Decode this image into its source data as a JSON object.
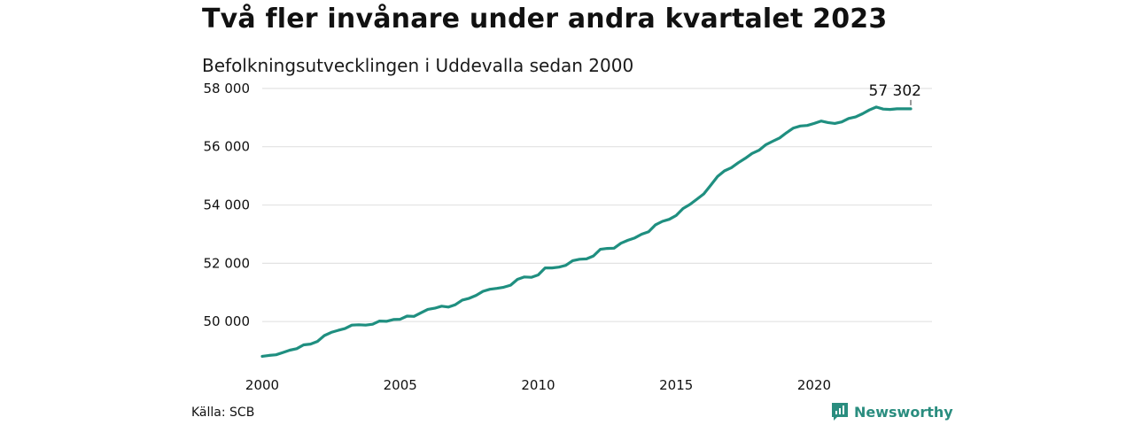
{
  "header": {
    "title": "Två fler invånare under andra kvartalet 2023",
    "subtitle": "Befolkningsutvecklingen i Uddevalla sedan 2000"
  },
  "footer": {
    "source": "Källa: SCB",
    "brand": "Newsworthy"
  },
  "colors": {
    "line": "#1f8f80",
    "brand": "#2a8d7f",
    "grid": "#e3e3e3"
  },
  "chart_data": {
    "type": "line",
    "title": "Två fler invånare under andra kvartalet 2023",
    "subtitle": "Befolkningsutvecklingen i Uddevalla sedan 2000",
    "xlim": [
      2000,
      2023.5
    ],
    "ylim": [
      48700,
      58300
    ],
    "x_ticks": [
      2000,
      2005,
      2010,
      2015,
      2020
    ],
    "x_tick_labels": [
      "2000",
      "2005",
      "2010",
      "2015",
      "2020"
    ],
    "y_ticks": [
      50000,
      52000,
      54000,
      56000,
      58000
    ],
    "y_tick_labels": [
      "50 000",
      "52 000",
      "54 000",
      "56 000",
      "58 000"
    ],
    "grid": "horizontal",
    "end_label": "57 302",
    "series": [
      {
        "points": [
          [
            2000.0,
            48810
          ],
          [
            2000.25,
            48840
          ],
          [
            2000.5,
            48860
          ],
          [
            2000.75,
            48940
          ],
          [
            2001.0,
            49020
          ],
          [
            2001.25,
            49070
          ],
          [
            2001.5,
            49200
          ],
          [
            2001.75,
            49230
          ],
          [
            2002.0,
            49320
          ],
          [
            2002.25,
            49520
          ],
          [
            2002.5,
            49630
          ],
          [
            2002.75,
            49700
          ],
          [
            2003.0,
            49760
          ],
          [
            2003.25,
            49880
          ],
          [
            2003.5,
            49890
          ],
          [
            2003.75,
            49880
          ],
          [
            2004.0,
            49910
          ],
          [
            2004.25,
            50020
          ],
          [
            2004.5,
            50010
          ],
          [
            2004.75,
            50070
          ],
          [
            2005.0,
            50080
          ],
          [
            2005.25,
            50190
          ],
          [
            2005.5,
            50180
          ],
          [
            2005.75,
            50300
          ],
          [
            2006.0,
            50420
          ],
          [
            2006.25,
            50460
          ],
          [
            2006.5,
            50530
          ],
          [
            2006.75,
            50500
          ],
          [
            2007.0,
            50580
          ],
          [
            2007.25,
            50740
          ],
          [
            2007.5,
            50800
          ],
          [
            2007.75,
            50900
          ],
          [
            2008.0,
            51040
          ],
          [
            2008.25,
            51110
          ],
          [
            2008.5,
            51140
          ],
          [
            2008.75,
            51180
          ],
          [
            2009.0,
            51250
          ],
          [
            2009.25,
            51450
          ],
          [
            2009.5,
            51530
          ],
          [
            2009.75,
            51520
          ],
          [
            2010.0,
            51600
          ],
          [
            2010.25,
            51840
          ],
          [
            2010.5,
            51840
          ],
          [
            2010.75,
            51870
          ],
          [
            2011.0,
            51930
          ],
          [
            2011.25,
            52090
          ],
          [
            2011.5,
            52140
          ],
          [
            2011.75,
            52150
          ],
          [
            2012.0,
            52250
          ],
          [
            2012.25,
            52480
          ],
          [
            2012.5,
            52510
          ],
          [
            2012.75,
            52520
          ],
          [
            2013.0,
            52690
          ],
          [
            2013.25,
            52790
          ],
          [
            2013.5,
            52870
          ],
          [
            2013.75,
            53000
          ],
          [
            2014.0,
            53080
          ],
          [
            2014.25,
            53320
          ],
          [
            2014.5,
            53440
          ],
          [
            2014.75,
            53510
          ],
          [
            2015.0,
            53640
          ],
          [
            2015.25,
            53880
          ],
          [
            2015.5,
            54020
          ],
          [
            2015.75,
            54200
          ],
          [
            2016.0,
            54380
          ],
          [
            2016.25,
            54680
          ],
          [
            2016.5,
            54980
          ],
          [
            2016.75,
            55170
          ],
          [
            2017.0,
            55280
          ],
          [
            2017.25,
            55450
          ],
          [
            2017.5,
            55600
          ],
          [
            2017.75,
            55770
          ],
          [
            2018.0,
            55880
          ],
          [
            2018.25,
            56070
          ],
          [
            2018.5,
            56190
          ],
          [
            2018.75,
            56300
          ],
          [
            2019.0,
            56480
          ],
          [
            2019.25,
            56640
          ],
          [
            2019.5,
            56710
          ],
          [
            2019.75,
            56730
          ],
          [
            2020.0,
            56800
          ],
          [
            2020.25,
            56880
          ],
          [
            2020.5,
            56830
          ],
          [
            2020.75,
            56800
          ],
          [
            2021.0,
            56850
          ],
          [
            2021.25,
            56970
          ],
          [
            2021.5,
            57020
          ],
          [
            2021.75,
            57130
          ],
          [
            2022.0,
            57260
          ],
          [
            2022.25,
            57360
          ],
          [
            2022.5,
            57290
          ],
          [
            2022.75,
            57280
          ],
          [
            2023.0,
            57300
          ],
          [
            2023.25,
            57300
          ],
          [
            2023.5,
            57302
          ]
        ]
      }
    ]
  }
}
